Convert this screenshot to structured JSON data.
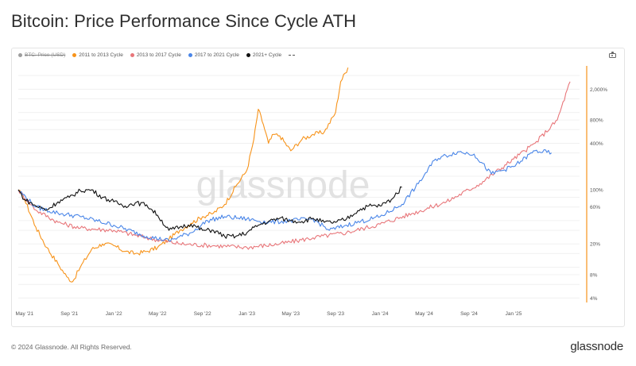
{
  "title": "Bitcoin: Price Performance Since Cycle ATH",
  "footer": {
    "copyright": "© 2024 Glassnode. All Rights Reserved.",
    "logo_text": "glassnode"
  },
  "watermark": "glassnode",
  "toolbar": {
    "camera_icon": "camera-icon"
  },
  "chart_data": {
    "type": "line",
    "title": "Bitcoin: Price Performance Since Cycle ATH",
    "y_scale": "log",
    "y_ticks": [
      {
        "value": 4,
        "label": "4%"
      },
      {
        "value": 8,
        "label": "8%"
      },
      {
        "value": 20,
        "label": "20%"
      },
      {
        "value": 60,
        "label": "60%"
      },
      {
        "value": 100,
        "label": "100%"
      },
      {
        "value": 400,
        "label": "400%"
      },
      {
        "value": 800,
        "label": "800%"
      },
      {
        "value": 2000,
        "label": "2,000%"
      }
    ],
    "ylim": [
      3.5,
      4000
    ],
    "x_range": [
      "2021-04-14",
      "2025-07-01"
    ],
    "x_ticks": [
      {
        "date": "2021-05-01",
        "label": "May '21"
      },
      {
        "date": "2021-09-01",
        "label": "Sep '21"
      },
      {
        "date": "2022-01-01",
        "label": "Jan '22"
      },
      {
        "date": "2022-05-01",
        "label": "May '22"
      },
      {
        "date": "2022-09-01",
        "label": "Sep '22"
      },
      {
        "date": "2023-01-01",
        "label": "Jan '23"
      },
      {
        "date": "2023-05-01",
        "label": "May '23"
      },
      {
        "date": "2023-09-01",
        "label": "Sep '23"
      },
      {
        "date": "2024-01-01",
        "label": "Jan '24"
      },
      {
        "date": "2024-05-01",
        "label": "May '24"
      },
      {
        "date": "2024-09-01",
        "label": "Sep '24"
      },
      {
        "date": "2025-01-01",
        "label": "Jan '25"
      }
    ],
    "grid": true,
    "legend_position": "top-left",
    "legend": [
      {
        "name": "BTC: Price (USD)",
        "color": "#9e9e9e",
        "disabled": true
      },
      {
        "name": "2011 to 2013 Cycle",
        "color": "#f7931a"
      },
      {
        "name": "2013 to 2017 Cycle",
        "color": "#e8767a"
      },
      {
        "name": "2017 to 2021 Cycle",
        "color": "#4a86e8"
      },
      {
        "name": "2021+ Cycle",
        "color": "#111111"
      }
    ],
    "series": [
      {
        "name": "2011 to 2013 Cycle",
        "color": "#f7931a",
        "points": [
          [
            "2021-04-14",
            100
          ],
          [
            "2021-05-01",
            75
          ],
          [
            "2021-06-01",
            33
          ],
          [
            "2021-07-01",
            18
          ],
          [
            "2021-08-01",
            11
          ],
          [
            "2021-08-25",
            7.5
          ],
          [
            "2021-09-10",
            6.5
          ],
          [
            "2021-10-01",
            10
          ],
          [
            "2021-11-01",
            17
          ],
          [
            "2021-12-01",
            20
          ],
          [
            "2022-01-01",
            19
          ],
          [
            "2022-02-01",
            16
          ],
          [
            "2022-03-01",
            15
          ],
          [
            "2022-04-01",
            16
          ],
          [
            "2022-05-01",
            18
          ],
          [
            "2022-06-01",
            23
          ],
          [
            "2022-07-01",
            30
          ],
          [
            "2022-08-01",
            37
          ],
          [
            "2022-09-01",
            45
          ],
          [
            "2022-10-01",
            50
          ],
          [
            "2022-11-01",
            65
          ],
          [
            "2022-12-01",
            110
          ],
          [
            "2023-01-01",
            180
          ],
          [
            "2023-01-20",
            450
          ],
          [
            "2023-02-01",
            1100
          ],
          [
            "2023-02-15",
            700
          ],
          [
            "2023-03-01",
            400
          ],
          [
            "2023-03-15",
            520
          ],
          [
            "2023-04-01",
            500
          ],
          [
            "2023-05-01",
            320
          ],
          [
            "2023-06-01",
            450
          ],
          [
            "2023-07-01",
            520
          ],
          [
            "2023-08-01",
            560
          ],
          [
            "2023-09-01",
            1000
          ],
          [
            "2023-09-15",
            2500
          ],
          [
            "2023-10-05",
            3800
          ]
        ]
      },
      {
        "name": "2013 to 2017 Cycle",
        "color": "#e8767a",
        "points": [
          [
            "2021-04-14",
            100
          ],
          [
            "2021-06-01",
            55
          ],
          [
            "2021-08-01",
            38
          ],
          [
            "2021-10-01",
            32
          ],
          [
            "2022-01-01",
            30
          ],
          [
            "2022-04-01",
            24
          ],
          [
            "2022-07-01",
            20
          ],
          [
            "2022-10-01",
            19
          ],
          [
            "2023-01-01",
            18
          ],
          [
            "2023-04-01",
            20
          ],
          [
            "2023-07-01",
            24
          ],
          [
            "2023-10-01",
            28
          ],
          [
            "2024-01-01",
            36
          ],
          [
            "2024-04-01",
            50
          ],
          [
            "2024-07-01",
            70
          ],
          [
            "2024-10-01",
            120
          ],
          [
            "2025-01-01",
            250
          ],
          [
            "2025-03-01",
            400
          ],
          [
            "2025-05-01",
            800
          ],
          [
            "2025-06-05",
            2500
          ]
        ]
      },
      {
        "name": "2017 to 2021 Cycle",
        "color": "#4a86e8",
        "points": [
          [
            "2021-04-14",
            100
          ],
          [
            "2021-06-01",
            60
          ],
          [
            "2021-08-01",
            50
          ],
          [
            "2021-10-01",
            45
          ],
          [
            "2022-01-01",
            35
          ],
          [
            "2022-04-01",
            25
          ],
          [
            "2022-06-01",
            22
          ],
          [
            "2022-08-01",
            28
          ],
          [
            "2022-09-15",
            40
          ],
          [
            "2022-11-01",
            45
          ],
          [
            "2023-01-01",
            42
          ],
          [
            "2023-03-01",
            38
          ],
          [
            "2023-05-01",
            40
          ],
          [
            "2023-07-01",
            42
          ],
          [
            "2023-08-15",
            30
          ],
          [
            "2023-10-01",
            35
          ],
          [
            "2024-01-01",
            45
          ],
          [
            "2024-03-01",
            65
          ],
          [
            "2024-04-15",
            120
          ],
          [
            "2024-06-01",
            250
          ],
          [
            "2024-08-01",
            310
          ],
          [
            "2024-09-15",
            290
          ],
          [
            "2024-11-01",
            160
          ],
          [
            "2025-01-01",
            200
          ],
          [
            "2025-03-01",
            320
          ],
          [
            "2025-04-15",
            300
          ]
        ]
      },
      {
        "name": "2021+ Cycle",
        "color": "#111111",
        "points": [
          [
            "2021-04-14",
            100
          ],
          [
            "2021-05-01",
            75
          ],
          [
            "2021-06-01",
            62
          ],
          [
            "2021-07-01",
            55
          ],
          [
            "2021-08-01",
            70
          ],
          [
            "2021-09-01",
            80
          ],
          [
            "2021-10-01",
            98
          ],
          [
            "2021-11-01",
            100
          ],
          [
            "2021-12-01",
            80
          ],
          [
            "2022-01-01",
            70
          ],
          [
            "2022-02-01",
            62
          ],
          [
            "2022-03-01",
            68
          ],
          [
            "2022-04-01",
            64
          ],
          [
            "2022-05-01",
            47
          ],
          [
            "2022-06-01",
            30
          ],
          [
            "2022-07-01",
            33
          ],
          [
            "2022-08-01",
            36
          ],
          [
            "2022-09-01",
            30
          ],
          [
            "2022-10-01",
            30
          ],
          [
            "2022-11-01",
            25
          ],
          [
            "2022-12-01",
            25
          ],
          [
            "2023-01-01",
            28
          ],
          [
            "2023-02-01",
            35
          ],
          [
            "2023-03-01",
            39
          ],
          [
            "2023-04-01",
            43
          ],
          [
            "2023-05-01",
            40
          ],
          [
            "2023-06-01",
            39
          ],
          [
            "2023-07-01",
            43
          ],
          [
            "2023-08-01",
            38
          ],
          [
            "2023-09-01",
            38
          ],
          [
            "2023-10-01",
            42
          ],
          [
            "2023-11-01",
            54
          ],
          [
            "2023-12-01",
            62
          ],
          [
            "2024-01-01",
            62
          ],
          [
            "2024-02-01",
            75
          ],
          [
            "2024-03-01",
            108
          ]
        ]
      }
    ]
  }
}
